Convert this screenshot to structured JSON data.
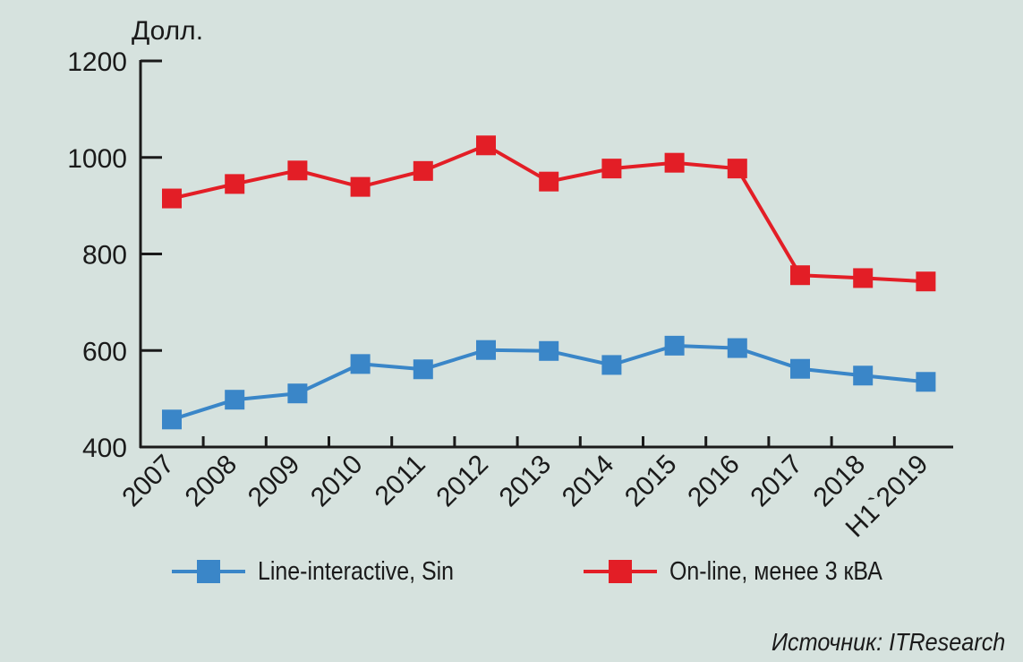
{
  "chart_data": {
    "type": "line",
    "ylabel": "Долл.",
    "ylim": [
      400,
      1200
    ],
    "yticks": [
      400,
      600,
      800,
      1000,
      1200
    ],
    "categories": [
      "2007",
      "2008",
      "2009",
      "2010",
      "2011",
      "2012",
      "2013",
      "2014",
      "2015",
      "2016",
      "2017",
      "2018",
      "H1`2019"
    ],
    "series": [
      {
        "name": "Line-interactive, Sin",
        "color": "#3a86c8",
        "values": [
          457,
          498,
          511,
          572,
          561,
          601,
          599,
          570,
          610,
          605,
          562,
          548,
          535
        ]
      },
      {
        "name": "On-line, менее 3 кВА",
        "color": "#e31e26",
        "values": [
          915,
          945,
          973,
          939,
          972,
          1025,
          950,
          977,
          989,
          977,
          756,
          750,
          743
        ]
      }
    ],
    "grid": false,
    "legend": "bottom",
    "source": "Источник: ITResearch"
  }
}
